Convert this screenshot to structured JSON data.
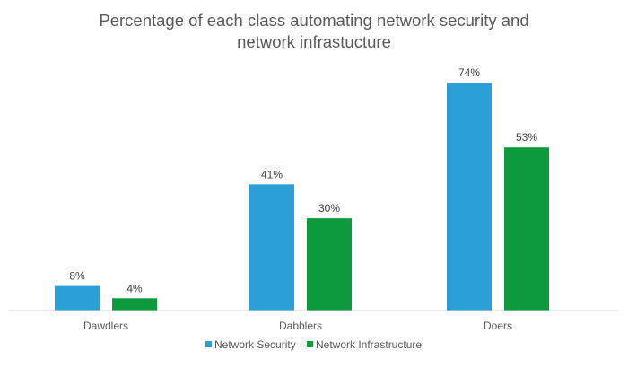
{
  "chart_data": {
    "type": "bar",
    "title_lines": [
      "Percentage of each class automating network security and",
      "network infrastucture"
    ],
    "categories": [
      "Dawdlers",
      "Dabblers",
      "Doers"
    ],
    "series": [
      {
        "name": "Network Security",
        "color": "#2a9fd8",
        "values": [
          8,
          41,
          74
        ],
        "labels": [
          "8%",
          "41%",
          "74%"
        ]
      },
      {
        "name": "Network Infrastructure",
        "color": "#0c9a3d",
        "values": [
          4,
          30,
          53
        ],
        "labels": [
          "4%",
          "30%",
          "53%"
        ]
      }
    ],
    "ylim": [
      0,
      80
    ],
    "grid": false,
    "legend_position": "bottom",
    "baseline_color": "#d9d9d9"
  }
}
